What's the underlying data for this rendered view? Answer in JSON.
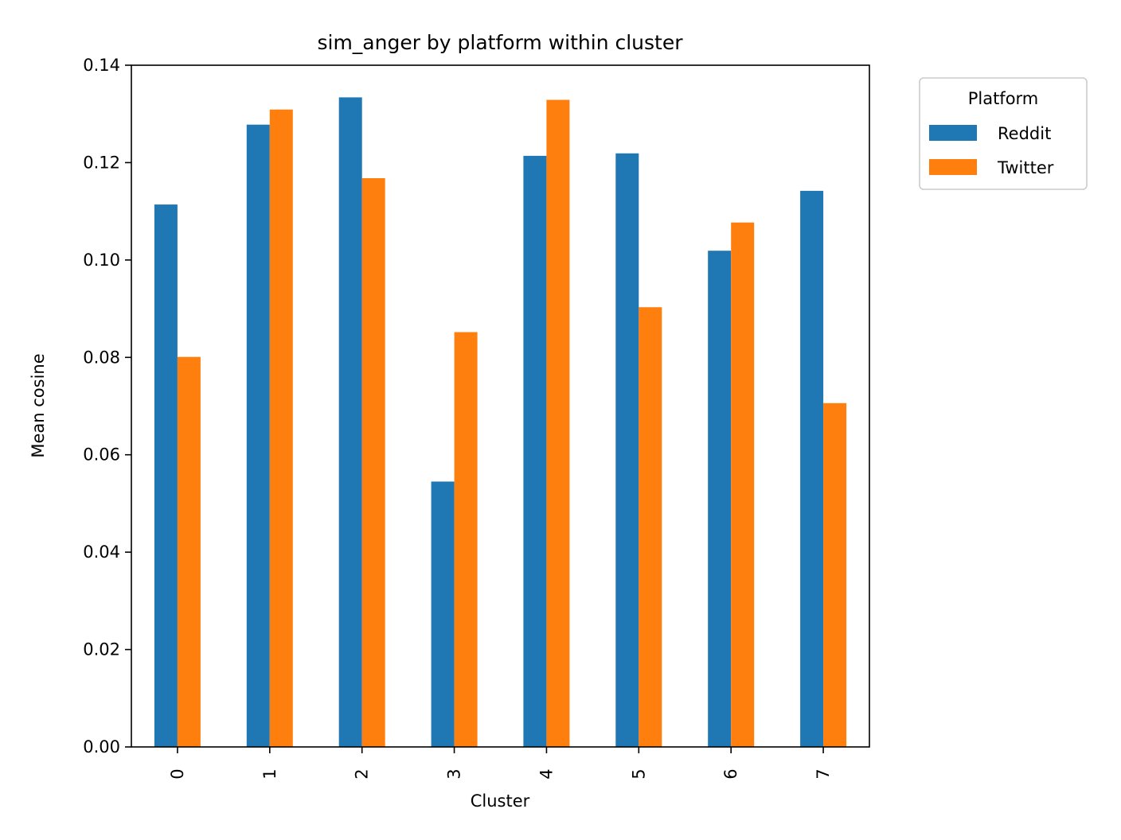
{
  "chart_data": {
    "type": "bar",
    "title": "sim_anger by platform within cluster",
    "xlabel": "Cluster",
    "ylabel": "Mean cosine",
    "categories": [
      "0",
      "1",
      "2",
      "3",
      "4",
      "5",
      "6",
      "7"
    ],
    "series": [
      {
        "name": "Reddit",
        "color": "#1f77b4",
        "values": [
          0.1114,
          0.1278,
          0.1334,
          0.0545,
          0.1214,
          0.1219,
          0.1019,
          0.1142
        ]
      },
      {
        "name": "Twitter",
        "color": "#ff7f0e",
        "values": [
          0.0801,
          0.1309,
          0.1168,
          0.0852,
          0.1329,
          0.0903,
          0.1077,
          0.0706
        ]
      }
    ],
    "ylim": [
      0,
      0.14
    ],
    "yticks": [
      "0.00",
      "0.02",
      "0.04",
      "0.06",
      "0.08",
      "0.10",
      "0.12",
      "0.14"
    ],
    "legend": {
      "title": "Platform",
      "placement": "outside upper right"
    },
    "grid": false
  }
}
